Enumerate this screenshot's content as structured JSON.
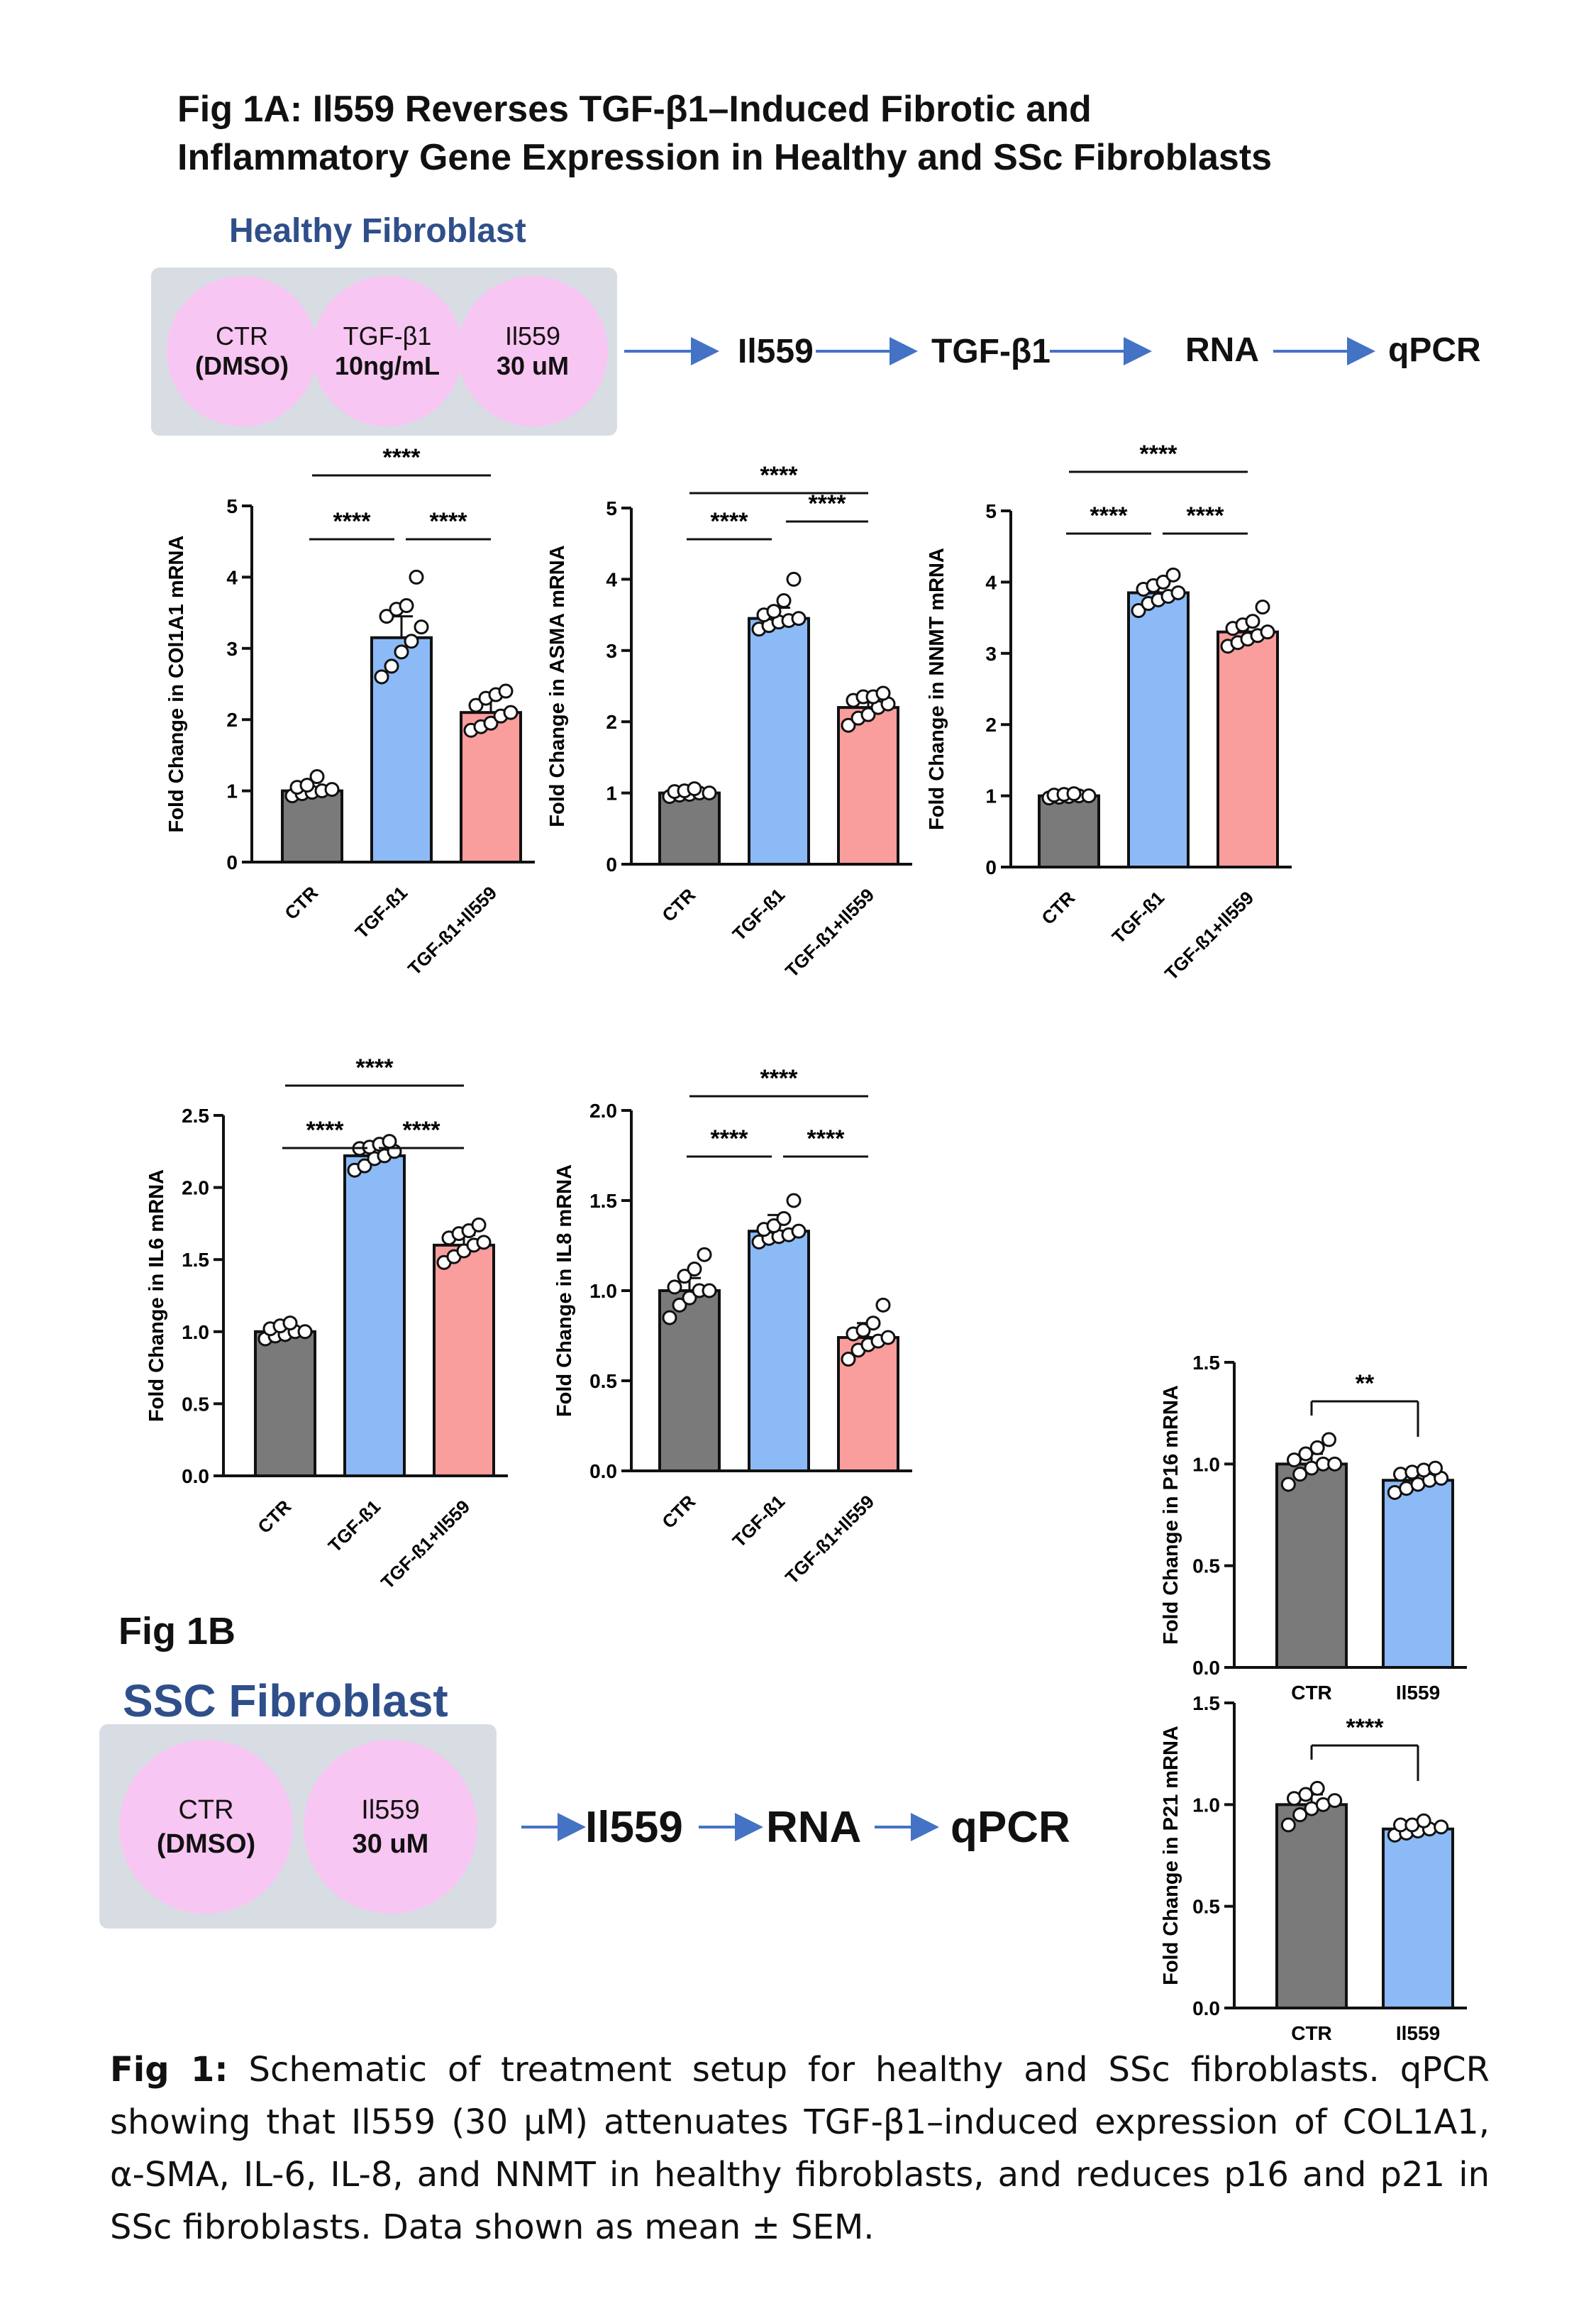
{
  "title_line1": "Fig 1A: Il559 Reverses TGF-β1–Induced Fibrotic and",
  "title_line2": "Inflammatory Gene Expression in Healthy and SSc Fibroblasts",
  "healthy": {
    "heading": "Healthy Fibroblast",
    "circles": [
      {
        "line1": "CTR",
        "line2": "(DMSO)"
      },
      {
        "line1": "TGF-β1",
        "line2": "10ng/mL"
      },
      {
        "line1": "Il559",
        "line2": "30 uM"
      }
    ],
    "flow": [
      "Il559",
      "TGF-β1",
      "RNA",
      "qPCR"
    ]
  },
  "fig1b_label": "Fig 1B",
  "ssc": {
    "heading": "SSC Fibroblast",
    "circles": [
      {
        "line1": "CTR",
        "line2": "(DMSO)"
      },
      {
        "line1": "Il559",
        "line2": "30 uM"
      }
    ],
    "flow": [
      "Il559",
      "RNA",
      "qPCR"
    ]
  },
  "caption": {
    "label": "Fig 1:",
    "text": " Schematic of treatment setup for healthy and SSc fibroblasts. qPCR showing that Il559 (30 µM) attenuates TGF-β1–induced expression of COL1A1, α-SMA, IL-6, IL-8, and NNMT in healthy fibroblasts, and reduces p16 and p21 in SSc fibroblasts. Data shown as mean ± SEM."
  },
  "colors": {
    "ctr": "#7a7a7a",
    "tgf": "#8bbaf7",
    "il559": "#fa9d9d",
    "circle": "#f8c6f2",
    "panel": "#d8dde4",
    "heading": "#2f4f8a",
    "arrow": "#4472c4"
  },
  "chart_data": [
    {
      "id": "col1a1",
      "type": "bar",
      "ylabel": "Fold Change in COl1A1 mRNA",
      "categories": [
        "CTR",
        "TGF-ß1",
        "TGF-ß1+Il559"
      ],
      "values": [
        1.0,
        3.15,
        2.1
      ],
      "errors": [
        0.05,
        0.3,
        0.2
      ],
      "ylim": [
        0,
        5
      ],
      "yticks": [
        "0",
        "1",
        "2",
        "3",
        "4",
        "5"
      ],
      "points": [
        [
          0.93,
          0.96,
          0.98,
          1.0,
          1.02,
          1.05,
          1.08,
          1.2
        ],
        [
          2.6,
          2.75,
          2.95,
          3.1,
          3.3,
          3.45,
          3.55,
          3.6,
          4.0
        ],
        [
          1.85,
          1.9,
          1.95,
          2.05,
          2.1,
          2.2,
          2.3,
          2.35,
          2.4
        ]
      ],
      "sig": [
        {
          "from": 0,
          "to": 1,
          "label": "****",
          "level": 1
        },
        {
          "from": 1,
          "to": 2,
          "label": "****",
          "level": 1
        },
        {
          "from": 0,
          "to": 2,
          "label": "****",
          "level": 2
        }
      ]
    },
    {
      "id": "asma",
      "type": "bar",
      "ylabel": "Fold Change in ASMA mRNA",
      "categories": [
        "CTR",
        "TGF-ß1",
        "TGF-ß1+Il559"
      ],
      "values": [
        1.0,
        3.45,
        2.2
      ],
      "errors": [
        0.04,
        0.15,
        0.12
      ],
      "ylim": [
        0,
        5
      ],
      "yticks": [
        "0",
        "1",
        "2",
        "3",
        "4",
        "5"
      ],
      "points": [
        [
          0.95,
          0.97,
          0.98,
          1.0,
          1.0,
          1.02,
          1.03,
          1.06
        ],
        [
          3.3,
          3.35,
          3.4,
          3.42,
          3.45,
          3.5,
          3.55,
          3.7,
          4.0
        ],
        [
          1.95,
          2.05,
          2.1,
          2.2,
          2.25,
          2.3,
          2.35,
          2.35,
          2.4
        ]
      ],
      "sig": [
        {
          "from": 0,
          "to": 1,
          "label": "****",
          "level": 1
        },
        {
          "from": 1,
          "to": 2,
          "label": "****",
          "level": 2
        },
        {
          "from": 0,
          "to": 2,
          "label": "****",
          "level": 3
        }
      ]
    },
    {
      "id": "nnmt",
      "type": "bar",
      "ylabel": "Fold Change in NNMT mRNA",
      "categories": [
        "CTR",
        "TGF-ß1",
        "TGF-ß1+Il559"
      ],
      "values": [
        1.0,
        3.85,
        3.3
      ],
      "errors": [
        0.03,
        0.12,
        0.1
      ],
      "ylim": [
        0,
        5
      ],
      "yticks": [
        "0",
        "1",
        "2",
        "3",
        "4",
        "5"
      ],
      "points": [
        [
          0.97,
          0.98,
          0.99,
          1.0,
          1.0,
          1.01,
          1.02,
          1.03
        ],
        [
          3.6,
          3.7,
          3.75,
          3.8,
          3.85,
          3.9,
          3.95,
          4.0,
          4.1
        ],
        [
          3.1,
          3.15,
          3.2,
          3.25,
          3.3,
          3.35,
          3.4,
          3.45,
          3.65
        ]
      ],
      "sig": [
        {
          "from": 0,
          "to": 1,
          "label": "****",
          "level": 1
        },
        {
          "from": 1,
          "to": 2,
          "label": "****",
          "level": 1
        },
        {
          "from": 0,
          "to": 2,
          "label": "****",
          "level": 2
        }
      ]
    },
    {
      "id": "il6",
      "type": "bar",
      "ylabel": "Fold Change in IL6 mRNA",
      "categories": [
        "CTR",
        "TGF-ß1",
        "TGF-ß1+Il559"
      ],
      "values": [
        1.0,
        2.22,
        1.6
      ],
      "errors": [
        0.03,
        0.06,
        0.07
      ],
      "ylim": [
        0,
        2.5
      ],
      "yticks": [
        "0.0",
        "0.5",
        "1.0",
        "1.5",
        "2.0",
        "2.5"
      ],
      "points": [
        [
          0.95,
          0.97,
          0.98,
          1.0,
          1.0,
          1.02,
          1.04,
          1.06
        ],
        [
          2.12,
          2.15,
          2.2,
          2.22,
          2.25,
          2.27,
          2.28,
          2.3,
          2.32
        ],
        [
          1.48,
          1.52,
          1.56,
          1.6,
          1.62,
          1.65,
          1.68,
          1.7,
          1.74
        ]
      ],
      "sig": [
        {
          "from": 0,
          "to": 1,
          "label": "****",
          "level": 1
        },
        {
          "from": 1,
          "to": 2,
          "label": "****",
          "level": 1
        },
        {
          "from": 0,
          "to": 2,
          "label": "****",
          "level": 2
        }
      ]
    },
    {
      "id": "il8",
      "type": "bar",
      "ylabel": "Fold Change in IL8 mRNA",
      "categories": [
        "CTR",
        "TGF-ß1",
        "TGF-ß1+Il559"
      ],
      "values": [
        1.0,
        1.33,
        0.74
      ],
      "errors": [
        0.07,
        0.09,
        0.08
      ],
      "ylim": [
        0,
        2.0
      ],
      "yticks": [
        "0.0",
        "0.5",
        "1.0",
        "1.5",
        "2.0"
      ],
      "points": [
        [
          0.85,
          0.92,
          0.96,
          1.0,
          1.0,
          1.02,
          1.08,
          1.12,
          1.2
        ],
        [
          1.27,
          1.29,
          1.3,
          1.31,
          1.33,
          1.34,
          1.36,
          1.4,
          1.5
        ],
        [
          0.62,
          0.67,
          0.7,
          0.72,
          0.74,
          0.76,
          0.78,
          0.82,
          0.92
        ]
      ],
      "sig": [
        {
          "from": 0,
          "to": 1,
          "label": "****",
          "level": 1
        },
        {
          "from": 1,
          "to": 2,
          "label": "****",
          "level": 1
        },
        {
          "from": 0,
          "to": 2,
          "label": "****",
          "level": 2
        }
      ]
    },
    {
      "id": "p16",
      "type": "bar",
      "ylabel": "Fold Change in P16 mRNA",
      "categories": [
        "CTR",
        "Il559"
      ],
      "values": [
        1.0,
        0.92
      ],
      "errors": [
        0.05,
        0.04
      ],
      "ylim": [
        0,
        1.5
      ],
      "yticks": [
        "0.0",
        "0.5",
        "1.0",
        "1.5"
      ],
      "points": [
        [
          0.9,
          0.95,
          0.98,
          1.0,
          1.0,
          1.02,
          1.05,
          1.08,
          1.12
        ],
        [
          0.86,
          0.88,
          0.9,
          0.92,
          0.93,
          0.95,
          0.96,
          0.97,
          0.98
        ]
      ],
      "sig": [
        {
          "from": 0,
          "to": 1,
          "label": "**",
          "level": 1
        }
      ]
    },
    {
      "id": "p21",
      "type": "bar",
      "ylabel": "Fold Change in P21 mRNA",
      "categories": [
        "CTR",
        "Il559"
      ],
      "values": [
        1.0,
        0.88
      ],
      "errors": [
        0.05,
        0.03
      ],
      "ylim": [
        0,
        1.5
      ],
      "yticks": [
        "0.0",
        "0.5",
        "1.0",
        "1.5"
      ],
      "points": [
        [
          0.9,
          0.95,
          0.98,
          1.0,
          1.02,
          1.03,
          1.05,
          1.08
        ],
        [
          0.85,
          0.86,
          0.87,
          0.88,
          0.89,
          0.9,
          0.9,
          0.92
        ]
      ],
      "sig": [
        {
          "from": 0,
          "to": 1,
          "label": "****",
          "level": 1
        }
      ]
    }
  ]
}
